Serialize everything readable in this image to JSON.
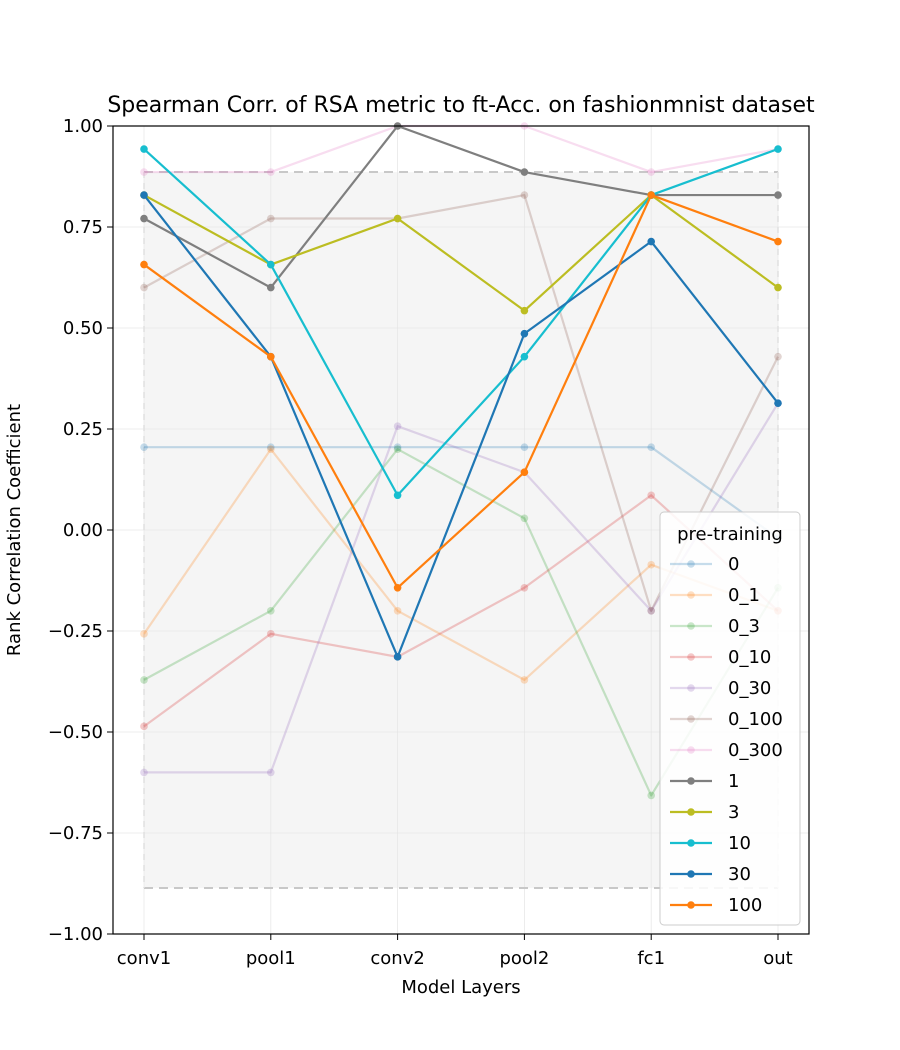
{
  "chart_data": {
    "type": "line",
    "title": "Spearman Corr. of RSA metric to ft-Acc. on fashionmnist dataset",
    "xlabel": "Model Layers",
    "ylabel": "Rank Correlation Coefficient",
    "categories": [
      "conv1",
      "pool1",
      "conv2",
      "pool2",
      "fc1",
      "out"
    ],
    "ylim": [
      -1.0,
      1.0
    ],
    "yticks": [
      "1.00",
      "0.75",
      "0.50",
      "0.25",
      "0.00",
      "−0.25",
      "−0.50",
      "−0.75",
      "−1.00"
    ],
    "ytick_values": [
      1.0,
      0.75,
      0.5,
      0.25,
      0.0,
      -0.25,
      -0.5,
      -0.75,
      -1.0
    ],
    "grid": true,
    "band": {
      "low": -0.886,
      "high": 0.886
    },
    "legend": {
      "title": "pre-training",
      "position": "lower-right"
    },
    "series": [
      {
        "name": "0",
        "color": "#1f77b4",
        "alpha": 0.25,
        "values": [
          0.205,
          0.205,
          0.205,
          0.205,
          0.205,
          -0.02
        ]
      },
      {
        "name": "0_1",
        "color": "#ff7f0e",
        "alpha": 0.25,
        "values": [
          -0.257,
          0.2,
          -0.2,
          -0.371,
          -0.086,
          -0.2
        ]
      },
      {
        "name": "0_3",
        "color": "#2ca02c",
        "alpha": 0.25,
        "values": [
          -0.371,
          -0.2,
          0.2,
          0.029,
          -0.657,
          -0.143
        ]
      },
      {
        "name": "0_10",
        "color": "#d62728",
        "alpha": 0.25,
        "values": [
          -0.486,
          -0.257,
          -0.314,
          -0.143,
          0.086,
          -0.2
        ]
      },
      {
        "name": "0_30",
        "color": "#9467bd",
        "alpha": 0.25,
        "values": [
          -0.6,
          -0.6,
          0.257,
          0.143,
          -0.2,
          0.314
        ]
      },
      {
        "name": "0_100",
        "color": "#8c564b",
        "alpha": 0.25,
        "values": [
          0.6,
          0.771,
          0.771,
          0.829,
          -0.2,
          0.429
        ]
      },
      {
        "name": "0_300",
        "color": "#e377c2",
        "alpha": 0.25,
        "values": [
          0.886,
          0.886,
          1.0,
          1.0,
          0.886,
          0.943
        ]
      },
      {
        "name": "1",
        "color": "#7f7f7f",
        "alpha": 1,
        "values": [
          0.771,
          0.6,
          1.0,
          0.886,
          0.829,
          0.829
        ]
      },
      {
        "name": "3",
        "color": "#bcbd22",
        "alpha": 1,
        "values": [
          0.829,
          0.657,
          0.771,
          0.543,
          0.829,
          0.6
        ]
      },
      {
        "name": "10",
        "color": "#17becf",
        "alpha": 1,
        "values": [
          0.943,
          0.657,
          0.086,
          0.429,
          0.829,
          0.943
        ]
      },
      {
        "name": "30",
        "color": "#1f77b4",
        "alpha": 1,
        "values": [
          0.829,
          0.429,
          -0.314,
          0.486,
          0.714,
          0.314
        ]
      },
      {
        "name": "100",
        "color": "#ff7f0e",
        "alpha": 1,
        "values": [
          0.657,
          0.429,
          -0.143,
          0.143,
          0.829,
          0.714
        ]
      }
    ]
  }
}
